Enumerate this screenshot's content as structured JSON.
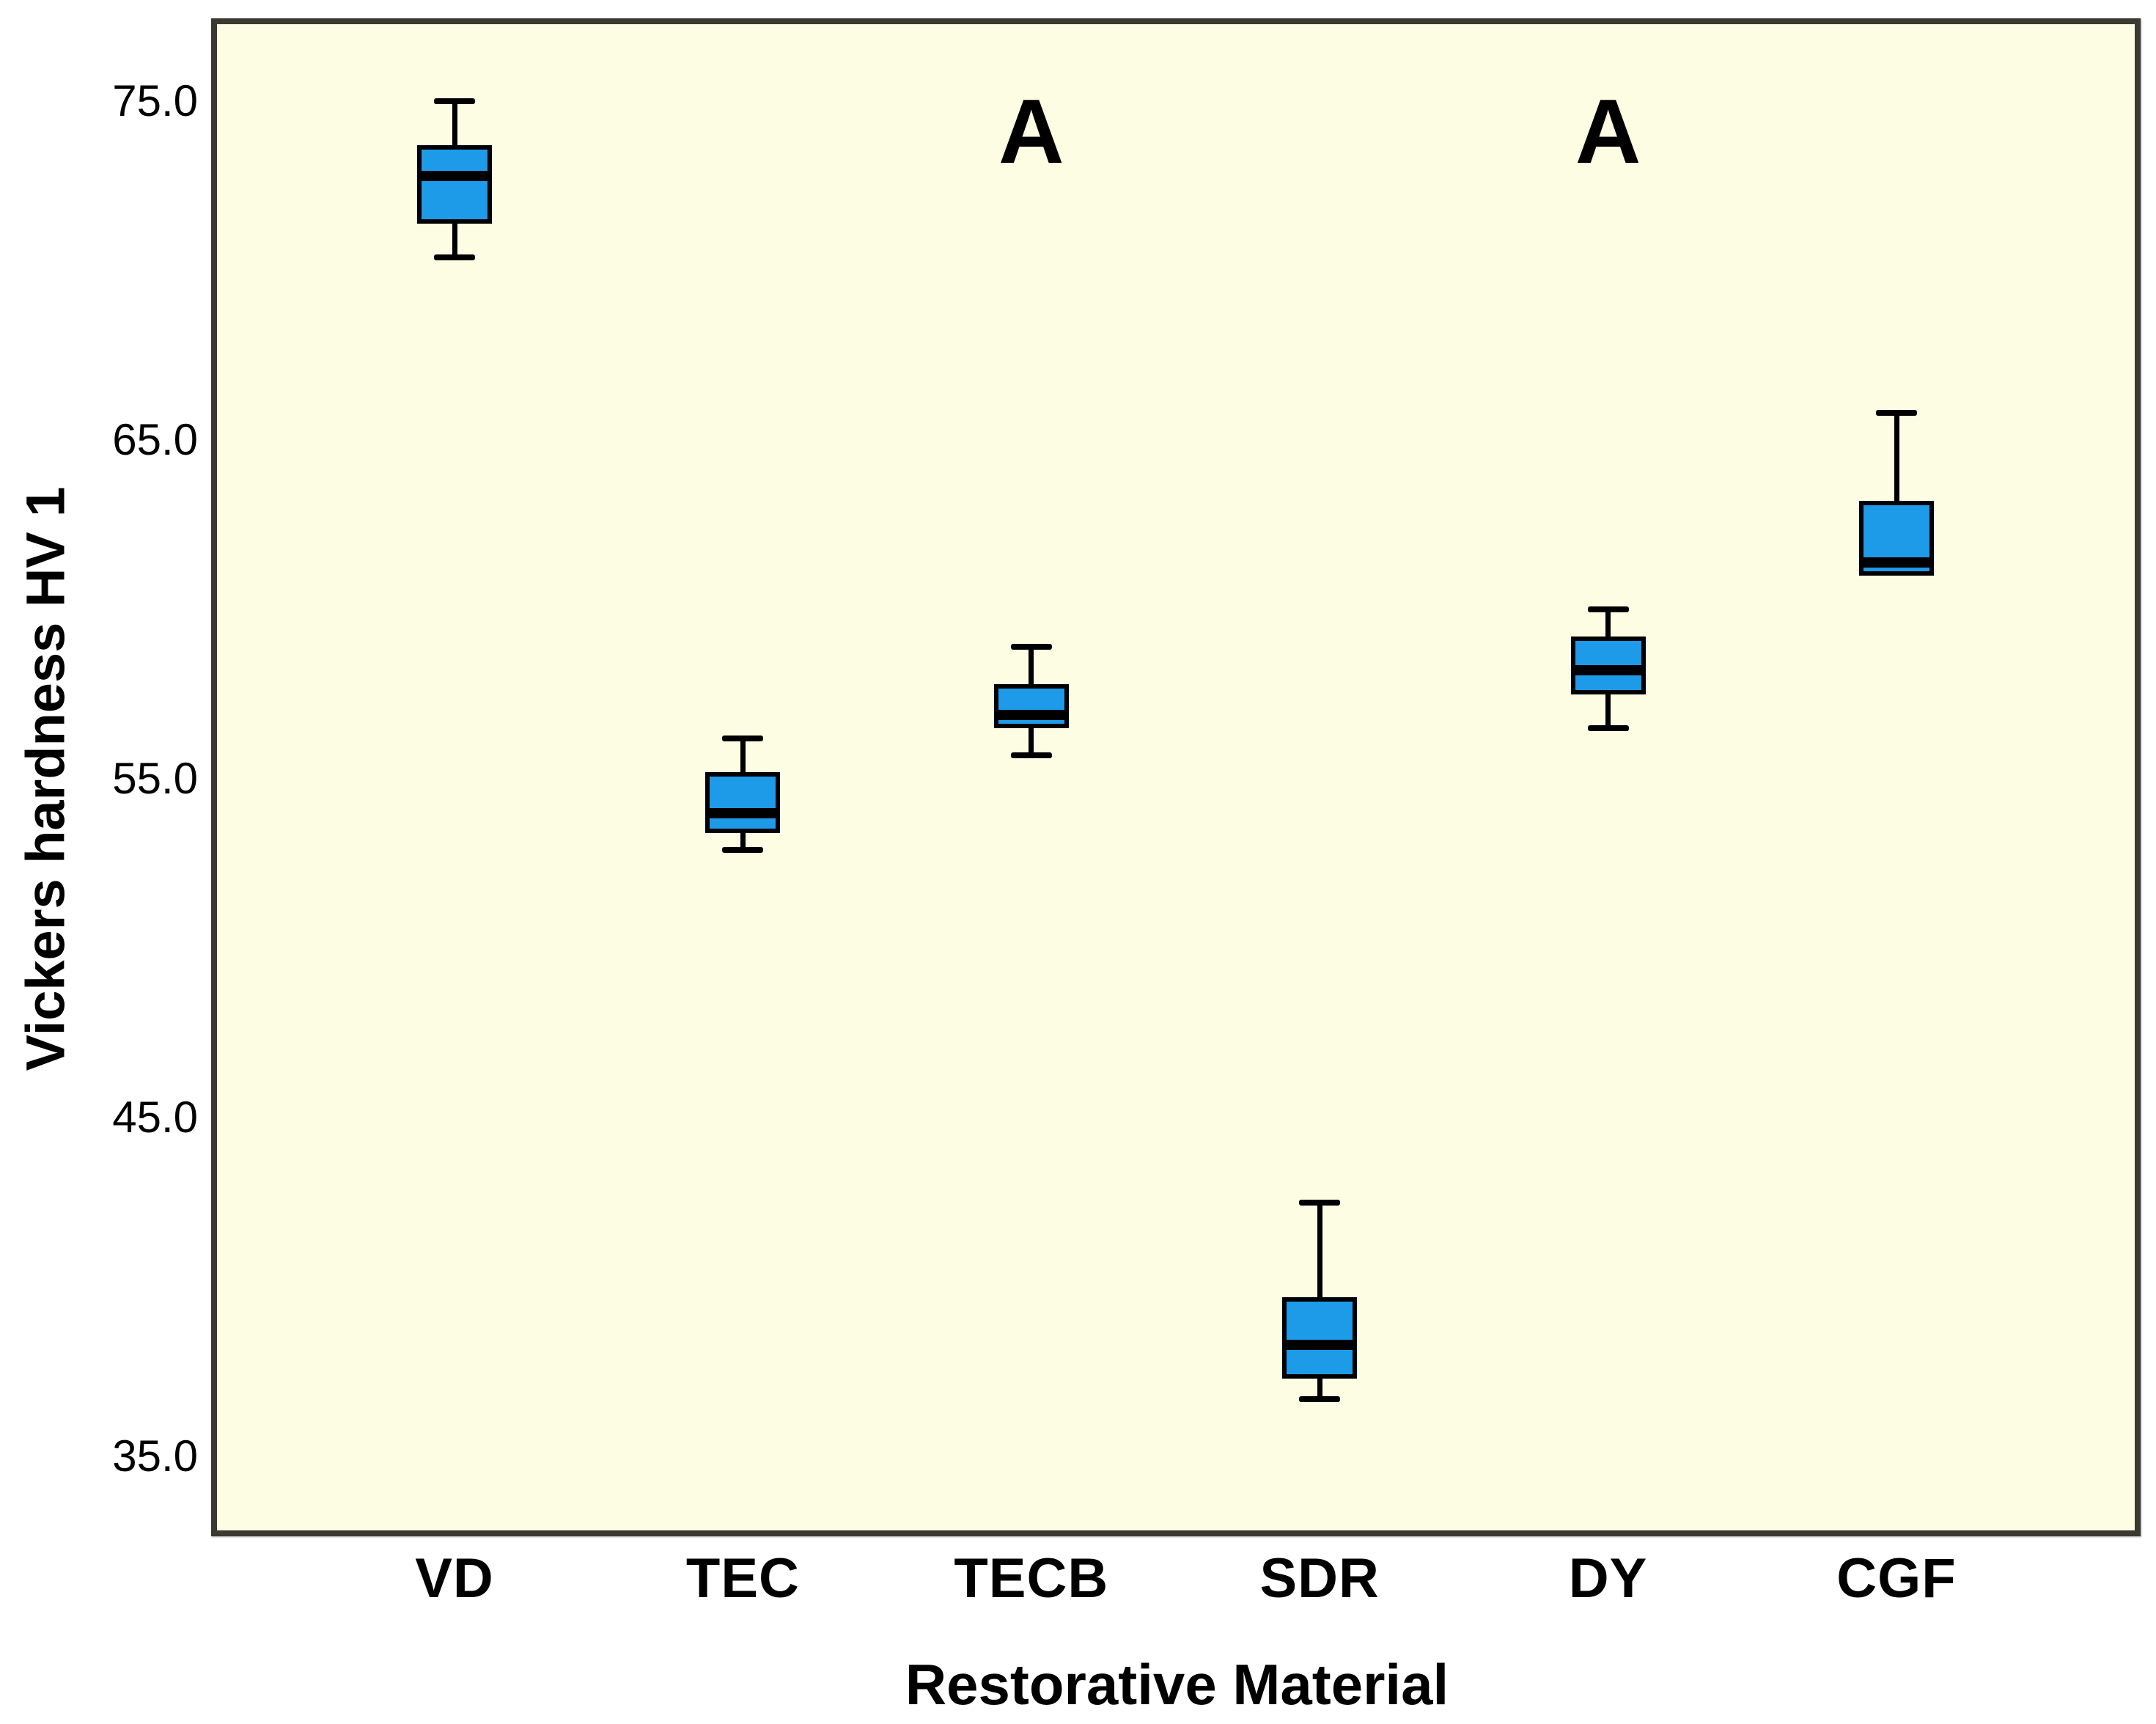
{
  "chart_data": {
    "type": "boxplot",
    "title": "",
    "xlabel": "Restorative Material",
    "ylabel": "Vickers hardness HV 1",
    "categories": [
      "VD",
      "TEC",
      "TECB",
      "SDR",
      "DY",
      "CGF"
    ],
    "series": [
      {
        "name": "VD",
        "min": 70.4,
        "q1": 71.4,
        "median": 72.8,
        "q3": 73.7,
        "max": 75.0
      },
      {
        "name": "TEC",
        "min": 52.9,
        "q1": 53.4,
        "median": 54.0,
        "q3": 55.2,
        "max": 56.2
      },
      {
        "name": "TECB",
        "min": 55.7,
        "q1": 56.5,
        "median": 56.9,
        "q3": 57.8,
        "max": 58.9
      },
      {
        "name": "SDR",
        "min": 36.7,
        "q1": 37.3,
        "median": 38.3,
        "q3": 39.7,
        "max": 42.5
      },
      {
        "name": "DY",
        "min": 56.5,
        "q1": 57.5,
        "median": 58.2,
        "q3": 59.2,
        "max": 60.0
      },
      {
        "name": "CGF",
        "min": 61.0,
        "q1": 61.0,
        "median": 61.4,
        "q3": 63.2,
        "max": 65.8
      }
    ],
    "ylim": [
      32.8,
      77.3
    ],
    "yticks": [
      75.0,
      65.0,
      55.0,
      45.0,
      35.0
    ],
    "ytick_labels": [
      "75.0",
      "65.0",
      "55.0",
      "45.0",
      "35.0"
    ],
    "grid": false,
    "legend": null,
    "annotations": [
      {
        "text": "A",
        "category": "TECB",
        "y": 74.1
      },
      {
        "text": "A",
        "category": "DY",
        "y": 74.1
      }
    ],
    "colors": {
      "box_fill": "#1E9BE8",
      "box_border": "#000000",
      "plot_background": "#FDFDE4",
      "plot_border": "#3A3A32",
      "page_background": "#FFFFFF",
      "text": "#000000"
    }
  }
}
